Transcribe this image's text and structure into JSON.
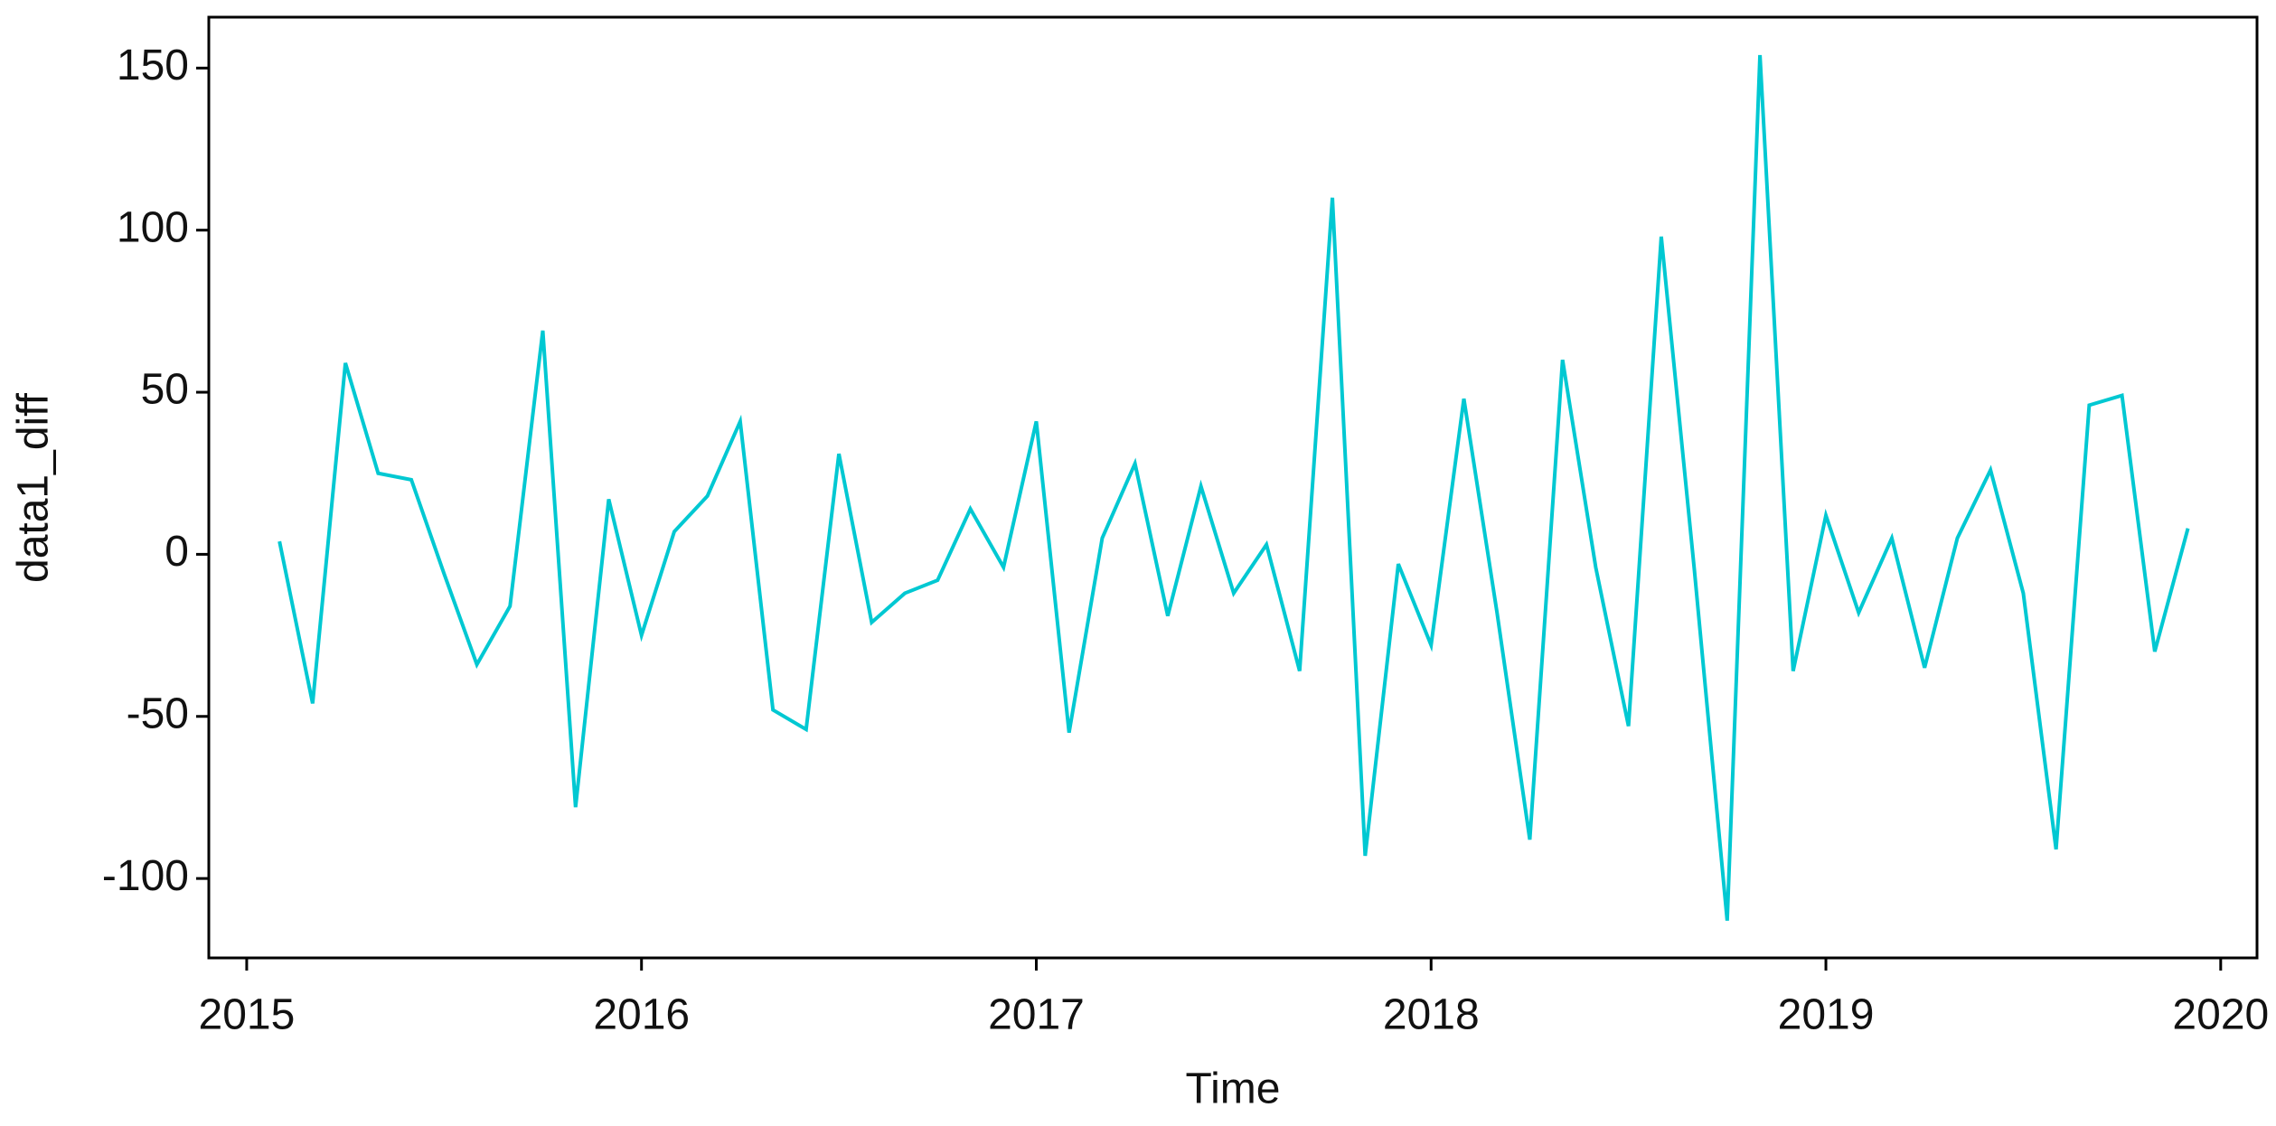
{
  "chart_data": {
    "type": "line",
    "xlabel": "Time",
    "ylabel": "data1_diff",
    "x": [
      2015.083,
      2015.167,
      2015.25,
      2015.333,
      2015.417,
      2015.5,
      2015.583,
      2015.667,
      2015.75,
      2015.833,
      2015.917,
      2016.0,
      2016.083,
      2016.167,
      2016.25,
      2016.333,
      2016.417,
      2016.5,
      2016.583,
      2016.667,
      2016.75,
      2016.833,
      2016.917,
      2017.0,
      2017.083,
      2017.167,
      2017.25,
      2017.333,
      2017.417,
      2017.5,
      2017.583,
      2017.667,
      2017.75,
      2017.833,
      2017.917,
      2018.0,
      2018.083,
      2018.167,
      2018.25,
      2018.333,
      2018.417,
      2018.5,
      2018.583,
      2018.667,
      2018.75,
      2018.833,
      2018.917,
      2019.0,
      2019.083,
      2019.167,
      2019.25,
      2019.333,
      2019.417,
      2019.5,
      2019.583,
      2019.667,
      2019.75,
      2019.833,
      2019.917
    ],
    "series": [
      {
        "color": "#00c8d2",
        "values": [
          4,
          -46,
          59,
          25,
          23,
          -6,
          -34,
          -16,
          69,
          -78,
          17,
          -25,
          7,
          18,
          41,
          -48,
          -54,
          31,
          -21,
          -12,
          -8,
          14,
          -4,
          41,
          -55,
          5,
          28,
          -19,
          21,
          -12,
          3,
          -36,
          110,
          -93,
          -3,
          -28,
          48,
          -18,
          -88,
          60,
          -4,
          -53,
          98,
          -5,
          -113,
          154,
          -36,
          12,
          -18,
          5,
          -35,
          5,
          26,
          -12,
          -91,
          46,
          49,
          -30,
          8
        ]
      }
    ],
    "xlim": [
      2014.904,
      2020.092
    ],
    "xticks": [
      2015,
      2016,
      2017,
      2018,
      2019,
      2020
    ],
    "ylim": [
      -124.5,
      165.7
    ],
    "yticks": [
      -100,
      -50,
      0,
      50,
      100,
      150
    ],
    "grid": false
  }
}
